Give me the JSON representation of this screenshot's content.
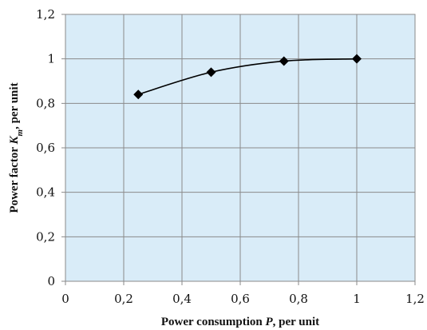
{
  "chart_data": {
    "type": "scatter",
    "series": [
      {
        "x": [
          0.25,
          0.5,
          0.75,
          1.0
        ],
        "y": [
          0.84,
          0.94,
          0.99,
          1.0
        ],
        "marker": "diamond",
        "color": "#000000",
        "trendline": "smooth"
      }
    ],
    "xlim": [
      0,
      1.2
    ],
    "ylim": [
      0,
      1.2
    ],
    "xticks": [
      "0",
      "0,2",
      "0,4",
      "0,6",
      "0,8",
      "1",
      "1,2"
    ],
    "yticks": [
      "0",
      "0,2",
      "0,4",
      "0,6",
      "0,8",
      "1",
      "1,2"
    ],
    "xlabel": {
      "before": "Power consumption ",
      "italic": "P",
      "after": ", per unit"
    },
    "ylabel": {
      "before": "Power factor ",
      "italic": "K",
      "sub": "m",
      "after": ", per unit"
    },
    "grid": true,
    "plot_background": "#d9ecf8",
    "grid_color": "#8a8a8a"
  }
}
